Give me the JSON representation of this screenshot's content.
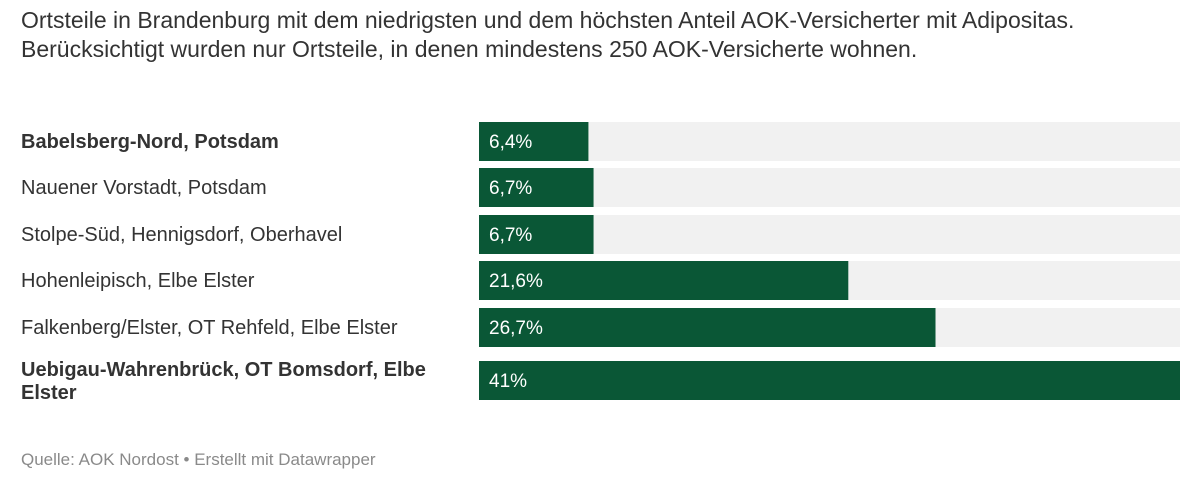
{
  "title": "Ortsteile in Brandenburg mit dem niedrigsten und dem höchsten Anteil AOK-Versicherter mit Adipositas. Berücksichtigt wurden nur Ortsteile, in denen mindestens 250 AOK-Versicherte wohnen.",
  "footer": "Quelle: AOK Nordost • Erstellt mit Datawrapper",
  "colors": {
    "bar": "#0a5736",
    "track": "#f1f1f1",
    "text": "#333333",
    "footer": "#8a8a8a"
  },
  "chart_data": {
    "type": "bar",
    "orientation": "horizontal",
    "xlim": [
      0,
      41
    ],
    "categories": [
      "Babelsberg-Nord, Potsdam",
      "Nauener Vorstadt, Potsdam",
      "Stolpe-Süd, Hennigsdorf, Oberhavel",
      "Hohenleipisch, Elbe Elster",
      "Falkenberg/Elster, OT Rehfeld, Elbe Elster",
      "Uebigau-Wahrenbrück, OT Bomsdorf, Elbe Elster"
    ],
    "label_lines": [
      [
        "Babelsberg-Nord, Potsdam"
      ],
      [
        "Nauener Vorstadt, Potsdam"
      ],
      [
        "Stolpe-Süd, Hennigsdorf, Oberhavel"
      ],
      [
        "Hohenleipisch, Elbe Elster"
      ],
      [
        "Falkenberg/Elster, OT Rehfeld, Elbe Elster"
      ],
      [
        "Uebigau-Wahrenbrück, OT Bomsdorf, Elbe",
        "Elster"
      ]
    ],
    "bold": [
      true,
      false,
      false,
      false,
      false,
      true
    ],
    "values": [
      6.4,
      6.7,
      6.7,
      21.6,
      26.7,
      41
    ],
    "value_labels": [
      "6,4%",
      "6,7%",
      "6,7%",
      "21,6%",
      "26,7%",
      "41%"
    ],
    "grid": false
  }
}
